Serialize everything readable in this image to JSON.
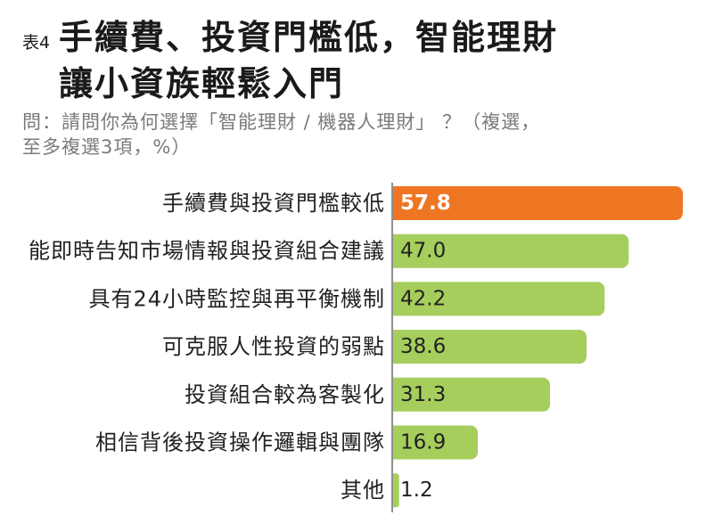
{
  "header": {
    "table_label": "表4",
    "title_lines": [
      "手續費、投資門檻低，智能理財",
      "讓小資族輕鬆入門"
    ],
    "question_lines": [
      "問：請問你為何選擇「智能理財 / 機器人理財」 ？（複選，",
      "至多複選3項，%）"
    ]
  },
  "colors": {
    "title": "#1A1A1A",
    "question": "#7A7A7A",
    "highlight_bar": "#EE7623",
    "bar": "#A6CE5C",
    "axis": "#8F8F8F",
    "label_text": "#222222",
    "highlight_value_text": "#FFFFFF"
  },
  "chart_data": {
    "type": "bar",
    "orientation": "horizontal",
    "categories": [
      "手續費與投資門檻較低",
      "能即時告知市場情報與投資組合建議",
      "具有24小時監控與再平衡機制",
      "可克服人性投資的弱點",
      "投資組合較為客製化",
      "相信背後投資操作邏輯與團隊",
      "其他"
    ],
    "values": [
      57.8,
      47.0,
      42.2,
      38.6,
      31.3,
      16.9,
      1.2
    ],
    "value_labels": [
      "57.8",
      "47.0",
      "42.2",
      "38.6",
      "31.3",
      "16.9",
      "1.2"
    ],
    "highlight_index": 0,
    "xlim": [
      0,
      57.8
    ],
    "grid": false,
    "legend": "none"
  }
}
